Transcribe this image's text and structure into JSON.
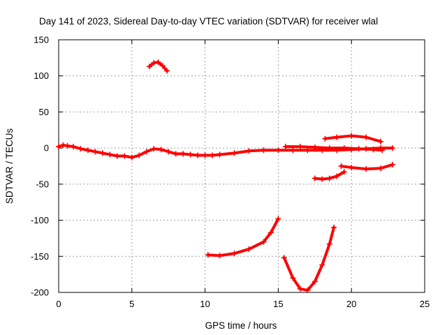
{
  "chart_data": {
    "type": "scatter",
    "title": "Day 141 of 2023, Sidereal Day-to-day VTEC variation (SDTVAR) for receiver wlal",
    "xlabel": "GPS time / hours",
    "ylabel": "SDTVAR / TECUs",
    "xlim": [
      0,
      25
    ],
    "ylim": [
      -200,
      150
    ],
    "xticks": [
      0,
      5,
      10,
      15,
      20,
      25
    ],
    "yticks": [
      -200,
      -150,
      -100,
      -50,
      0,
      50,
      100,
      150
    ],
    "xtick_labels": [
      "0",
      "5",
      "10",
      "15",
      "20",
      "25"
    ],
    "ytick_labels": [
      "-200",
      "-150",
      "-100",
      "-50",
      "0",
      "50",
      "100",
      "150"
    ],
    "grid": true,
    "marker": "plus",
    "color": "#ff0000",
    "series": [
      {
        "x": [
          0.0,
          0.3,
          0.6,
          1.0,
          1.5,
          2.0,
          2.5,
          3.0,
          3.5,
          4.0,
          4.5,
          5.0,
          5.5,
          6.0,
          6.5,
          7.0,
          7.5,
          8.0,
          8.5,
          9.0,
          9.5,
          10.0,
          10.5,
          11.0,
          12.0,
          13.0,
          14.0,
          15.0,
          16.0,
          17.0,
          18.0,
          19.0,
          20.0,
          21.0,
          22.0,
          22.8
        ],
        "y": [
          2,
          4,
          3,
          2,
          -1,
          -3,
          -5,
          -7,
          -9,
          -11,
          -11,
          -13,
          -10,
          -5,
          -1,
          -2,
          -5,
          -8,
          -8,
          -9,
          -10,
          -10,
          -10,
          -9,
          -7,
          -4,
          -3,
          -3,
          -3,
          -3,
          -3,
          -3,
          -2,
          -1,
          0,
          0
        ]
      },
      {
        "x": [
          6.2,
          6.5,
          6.8,
          7.1,
          7.4
        ],
        "y": [
          113,
          118,
          119,
          114,
          107
        ]
      },
      {
        "x": [
          15.5,
          16.5,
          17.5,
          18.5,
          19.5,
          20.5,
          21.5,
          22.1
        ],
        "y": [
          2,
          2,
          1,
          0,
          0,
          -1,
          -2,
          -3
        ]
      },
      {
        "x": [
          18.2,
          19.0,
          20.0,
          21.0,
          22.0
        ],
        "y": [
          13,
          15,
          17,
          15,
          9
        ]
      },
      {
        "x": [
          19.3,
          20.0,
          21.0,
          22.0,
          22.8
        ],
        "y": [
          -25,
          -27,
          -29,
          -28,
          -23
        ]
      },
      {
        "x": [
          17.5,
          18.0,
          18.5,
          19.0,
          19.5
        ],
        "y": [
          -42,
          -43,
          -42,
          -39,
          -33
        ]
      },
      {
        "x": [
          10.2,
          11.0,
          12.0,
          13.0,
          14.0,
          14.5,
          15.0
        ],
        "y": [
          -148,
          -149,
          -146,
          -140,
          -130,
          -117,
          -98
        ]
      },
      {
        "x": [
          15.4,
          16.0,
          16.5,
          17.0,
          17.5,
          18.0,
          18.5,
          18.8
        ],
        "y": [
          -152,
          -180,
          -195,
          -197,
          -185,
          -162,
          -133,
          -110
        ]
      }
    ]
  }
}
